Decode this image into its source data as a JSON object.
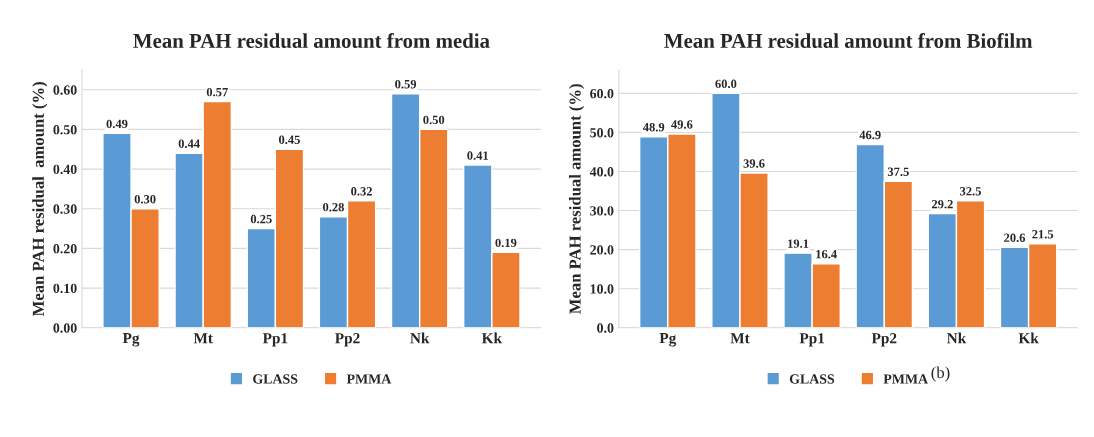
{
  "chart_data": [
    {
      "type": "bar",
      "title": "Mean PAH residual amount from media",
      "ylabel": "Mean PAH residual  amount (%)",
      "categories": [
        "Pg",
        "Mt",
        "Pp1",
        "Pp2",
        "Nk",
        "Kk"
      ],
      "series": [
        {
          "name": "GLASS",
          "color": "#5b9bd5",
          "values": [
            0.49,
            0.44,
            0.25,
            0.28,
            0.59,
            0.41
          ],
          "value_labels": [
            "0.49",
            "0.44",
            "0.25",
            "0.28",
            "0.59",
            "0.41"
          ]
        },
        {
          "name": "PMMA",
          "color": "#ed7d31",
          "values": [
            0.3,
            0.57,
            0.45,
            0.32,
            0.5,
            0.19
          ],
          "value_labels": [
            "0.30",
            "0.57",
            "0.45",
            "0.32",
            "0.50",
            "0.19"
          ]
        }
      ],
      "ylim": [
        0,
        0.65
      ],
      "yticks": [
        {
          "value": 0,
          "label": "0.00"
        },
        {
          "value": 0.1,
          "label": "0.10"
        },
        {
          "value": 0.2,
          "label": "0.20"
        },
        {
          "value": 0.3,
          "label": "0.30"
        },
        {
          "value": 0.4,
          "label": "0.40"
        },
        {
          "value": 0.5,
          "label": "0.50"
        },
        {
          "value": 0.6,
          "label": "0.60"
        }
      ],
      "grid": "y",
      "legend": "bottom"
    },
    {
      "type": "bar",
      "title": "Mean PAH residual amount from Biofilm",
      "ylabel": "Mean PAH residual amount (%)",
      "categories": [
        "Pg",
        "Mt",
        "Pp1",
        "Pp2",
        "Nk",
        "Kk"
      ],
      "series": [
        {
          "name": "GLASS",
          "color": "#5b9bd5",
          "values": [
            48.9,
            60.0,
            19.1,
            46.9,
            29.2,
            20.6
          ],
          "value_labels": [
            "48.9",
            "60.0",
            "19.1",
            "46.9",
            "29.2",
            "20.6"
          ]
        },
        {
          "name": "PMMA",
          "color": "#ed7d31",
          "values": [
            49.6,
            39.6,
            16.4,
            37.5,
            32.5,
            21.5
          ],
          "value_labels": [
            "49.6",
            "39.6",
            "16.4",
            "37.5",
            "32.5",
            "21.5"
          ]
        }
      ],
      "ylim": [
        0,
        66
      ],
      "yticks": [
        {
          "value": 0,
          "label": "0.0"
        },
        {
          "value": 10,
          "label": "10.0"
        },
        {
          "value": 20,
          "label": "20.0"
        },
        {
          "value": 30,
          "label": "30.0"
        },
        {
          "value": 40,
          "label": "40.0"
        },
        {
          "value": 50,
          "label": "50.0"
        },
        {
          "value": 60,
          "label": "60.0"
        }
      ],
      "grid": "y",
      "legend": "bottom",
      "annotations": [
        "(b)"
      ]
    }
  ]
}
